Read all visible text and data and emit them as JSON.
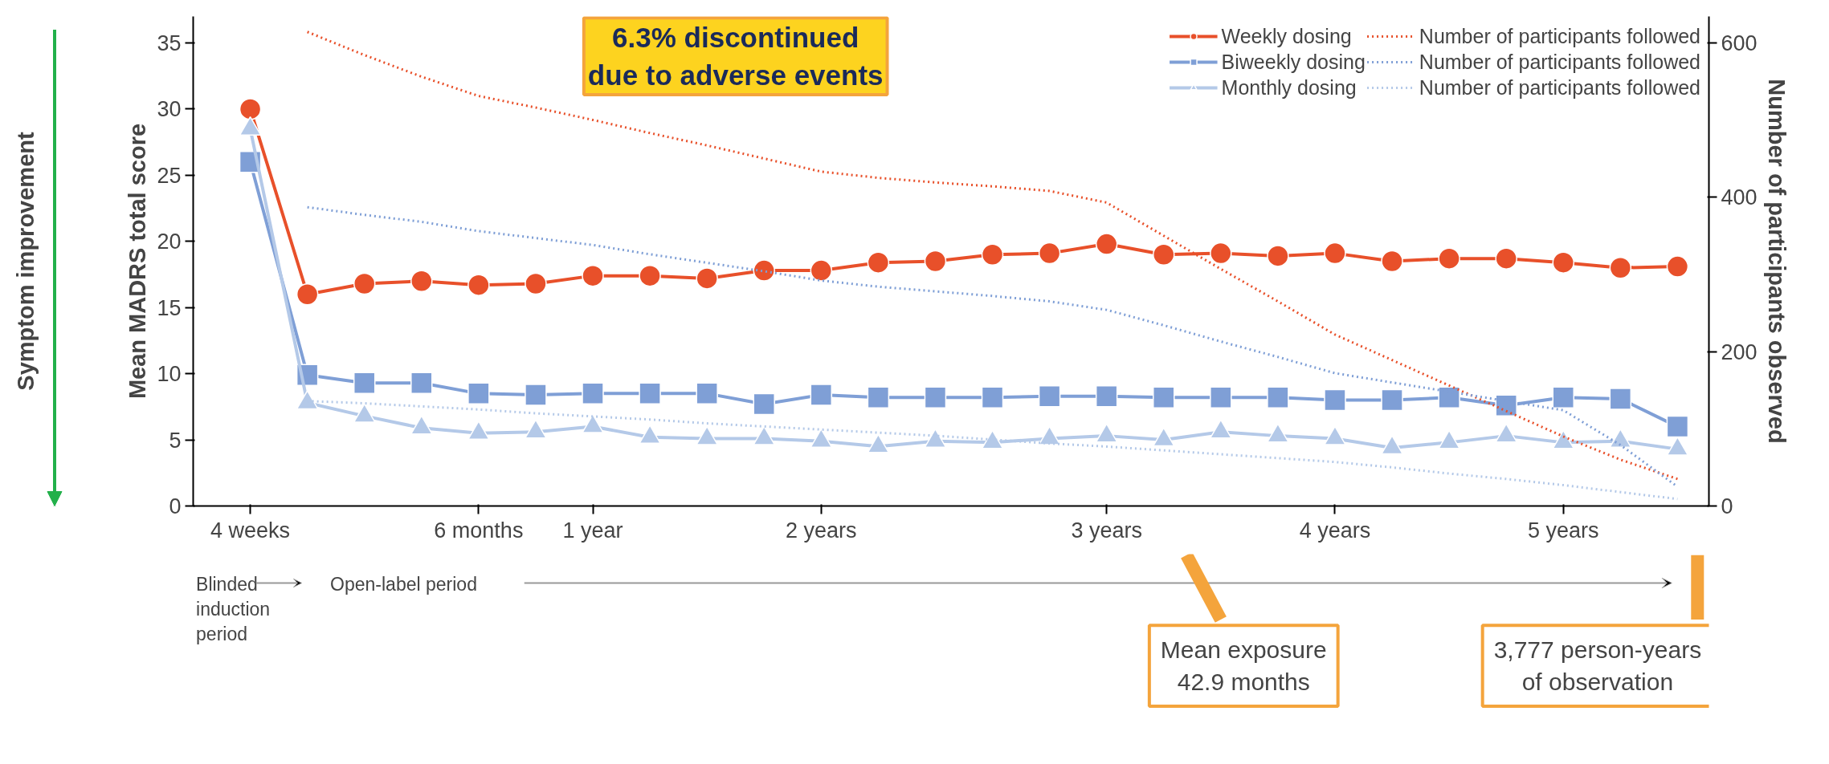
{
  "chart_data": {
    "type": "line",
    "ylabel": "Mean MADRS total score",
    "y2label": "Number of participants observed",
    "annotations": [
      "6.3% discontinued due to adverse events",
      "Blinded induction period",
      "Open-label period",
      "Mean exposure 42.9 months",
      "3,777 person-years of observation",
      "Symptom improvement"
    ],
    "categories": [
      "4 weeks",
      null,
      null,
      null,
      "6 months",
      null,
      "1 year",
      null,
      null,
      null,
      "2 years",
      null,
      null,
      null,
      null,
      "3 years",
      null,
      null,
      null,
      "4 years",
      null,
      null,
      null,
      "5 years",
      null,
      null
    ],
    "series": [
      {
        "name": "Weekly dosing",
        "color": "#e8502a",
        "marker": "circle",
        "line_style": "solid",
        "values": [
          30.0,
          16.0,
          16.8,
          17.0,
          16.7,
          16.8,
          17.4,
          17.4,
          17.2,
          17.8,
          17.8,
          18.4,
          18.5,
          19.0,
          19.1,
          19.8,
          19.0,
          19.1,
          18.9,
          19.1,
          18.5,
          18.7,
          18.7,
          18.4,
          18.0,
          18.1
        ]
      },
      {
        "name": "Biweekly dosing",
        "color": "#7f9fd6",
        "marker": "square",
        "line_style": "solid",
        "values": [
          26.0,
          9.9,
          9.3,
          9.3,
          8.5,
          8.4,
          8.5,
          8.5,
          8.5,
          7.7,
          8.4,
          8.2,
          8.2,
          8.2,
          8.3,
          8.3,
          8.2,
          8.2,
          8.2,
          8.0,
          8.0,
          8.2,
          7.6,
          8.2,
          8.1,
          6.0
        ]
      },
      {
        "name": "Monthly dosing",
        "color": "#b4c9e8",
        "marker": "triangle",
        "line_style": "solid",
        "values": [
          28.5,
          7.8,
          6.8,
          5.9,
          5.5,
          5.6,
          6.0,
          5.2,
          5.1,
          5.1,
          4.9,
          4.5,
          4.9,
          4.8,
          5.1,
          5.3,
          5.0,
          5.6,
          5.3,
          5.1,
          4.4,
          4.8,
          5.3,
          4.8,
          4.9,
          4.3
        ]
      },
      {
        "name": "Number of participants followed",
        "color": "#e8502a",
        "marker": "none",
        "line_style": "dotted",
        "axis": "y2",
        "values": [
          null,
          614,
          584,
          556,
          531,
          516,
          500,
          483,
          467,
          450,
          433,
          425,
          419,
          414,
          408,
          393,
          350,
          307,
          265,
          222,
          189,
          156,
          123,
          90,
          60,
          35
        ]
      },
      {
        "name": "Number of participants followed",
        "color": "#7f9fd6",
        "marker": "none",
        "line_style": "dotted",
        "axis": "y2",
        "values": [
          null,
          387,
          377,
          368,
          356,
          347,
          338,
          326,
          315,
          304,
          292,
          284,
          278,
          272,
          265,
          254,
          234,
          213,
          193,
          172,
          160,
          148,
          136,
          124,
          79,
          25
        ]
      },
      {
        "name": "Number of participants followed",
        "color": "#b4c9e8",
        "marker": "none",
        "line_style": "dotted",
        "axis": "y2",
        "values": [
          null,
          136,
          133,
          129,
          125,
          120,
          116,
          112,
          107,
          103,
          99,
          95,
          91,
          86,
          81,
          77,
          72,
          67,
          62,
          57,
          50,
          42,
          35,
          27,
          18,
          9
        ]
      }
    ],
    "ylim": [
      0,
      37
    ],
    "yticks": [
      0,
      5,
      10,
      15,
      20,
      25,
      30,
      35
    ],
    "y2lim": [
      0,
      634
    ],
    "y2ticks": [
      0,
      200,
      400,
      600
    ],
    "legend": "top right",
    "grid": false
  }
}
